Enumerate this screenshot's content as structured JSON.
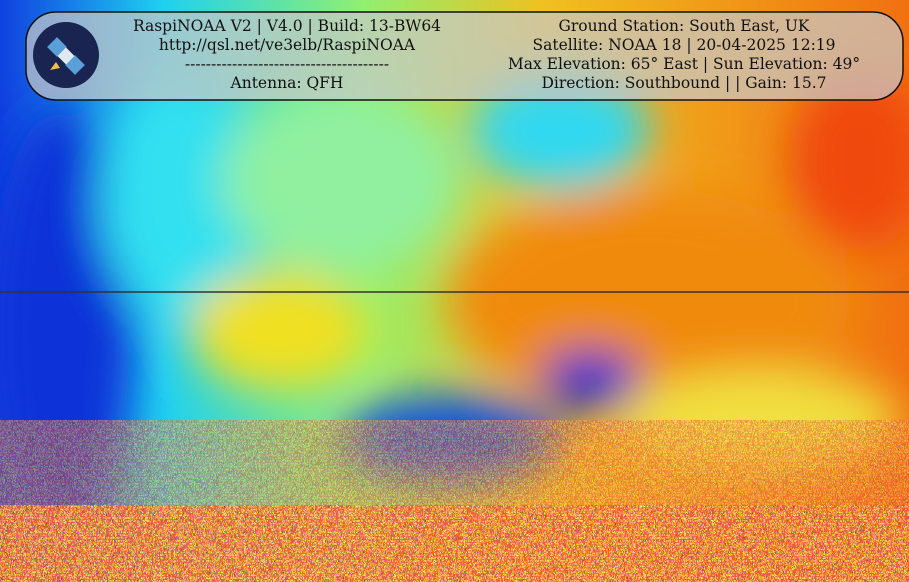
{
  "header": {
    "left": [
      "RaspiNOAA V2 | V4.0 | Build: 13-BW64",
      "http://qsl.net/ve3elb/RaspiNOAA",
      "---------------------------------------",
      "Antenna: QFH"
    ],
    "right": [
      "Ground Station: South East, UK",
      "Satellite: NOAA 18 | 20-04-2025 12:19",
      "Max Elevation: 65° East | Sun Elevation: 49°",
      "Direction: Southbound | | Gain: 15.7"
    ]
  }
}
